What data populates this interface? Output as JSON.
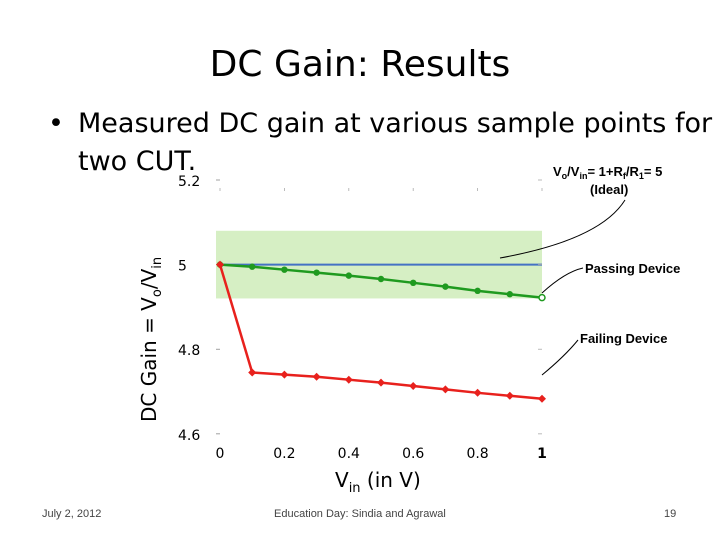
{
  "slide": {
    "title": "DC Gain: Results",
    "bullet_line1": "Measured DC gain at various sample points for",
    "bullet_line2": "two CUT.",
    "footer_date": "July 2, 2012",
    "footer_center": "Education Day: Sindia and Agrawal",
    "footer_page": "19"
  },
  "chart_data": {
    "type": "line",
    "xlabel_main": "V",
    "xlabel_sub": "in",
    "xlabel_rest": " (in V)",
    "ylabel_main": "DC Gain = V",
    "ylabel_sub1": "o",
    "ylabel_mid": "/V",
    "ylabel_sub2": "in",
    "xlim": [
      0,
      1
    ],
    "ylim": [
      4.55,
      5.2
    ],
    "x_ticks": [
      0,
      0.2,
      0.4,
      0.6,
      0.8,
      1
    ],
    "x_tick_labels": [
      "0",
      "0.2",
      "0.4",
      "0.6",
      "0.8",
      "1"
    ],
    "y_ticks": [
      4.6,
      4.8,
      5,
      5.2
    ],
    "y_tick_labels": [
      "4.6",
      "4.8",
      "5",
      "5.2"
    ],
    "grid": false,
    "tolerance_band": {
      "ymin": 4.92,
      "ymax": 5.08,
      "color": "#d6efc4"
    },
    "ideal": {
      "value": 5,
      "color": "#4472c4"
    },
    "series": [
      {
        "color": "#1f9a1f",
        "x": [
          0,
          0.1,
          0.2,
          0.3,
          0.4,
          0.5,
          0.6,
          0.7,
          0.8,
          0.9,
          1.0
        ],
        "y": [
          5.0,
          4.995,
          4.988,
          4.981,
          4.974,
          4.966,
          4.957,
          4.948,
          4.938,
          4.93,
          4.922
        ]
      },
      {
        "color": "#e8211d",
        "x": [
          0,
          0.1,
          0.2,
          0.3,
          0.4,
          0.5,
          0.6,
          0.7,
          0.8,
          0.9,
          1.0
        ],
        "y": [
          5.0,
          4.745,
          4.74,
          4.735,
          4.728,
          4.721,
          4.713,
          4.705,
          4.697,
          4.69,
          4.683
        ]
      }
    ],
    "annotations": {
      "ideal_formula": "V",
      "ideal_formula_sub1": "o",
      "ideal_formula_mid": "/V",
      "ideal_formula_sub2": "in",
      "ideal_formula_eq": "= 1+R",
      "ideal_formula_sub3": "f",
      "ideal_formula_mid2": "/R",
      "ideal_formula_sub4": "1",
      "ideal_formula_end": "= 5",
      "ideal_note": "(Ideal)",
      "passing": "Passing Device",
      "failing": "Failing Device"
    }
  }
}
